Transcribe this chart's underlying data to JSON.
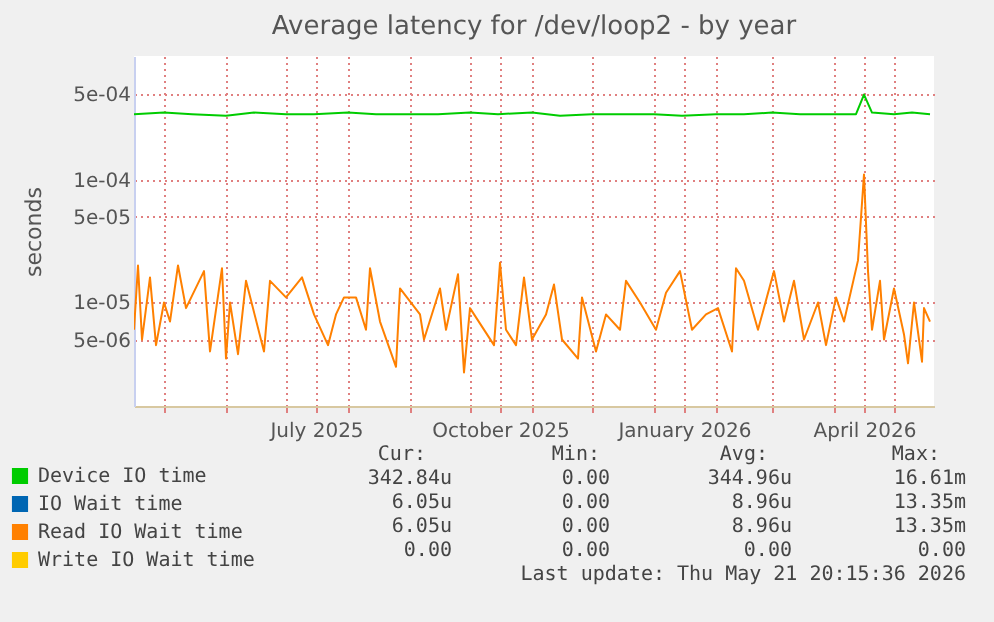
{
  "chart_data": {
    "type": "line",
    "title": "Average latency for /dev/loop2 - by year",
    "ylabel": "seconds",
    "log": "y",
    "grid": true,
    "legend": "bottom",
    "xlim": [
      "2025-04-16",
      "2026-05-21"
    ],
    "ylim": [
      1.44e-06,
      0.00101
    ],
    "xticks": [
      {
        "value": "2025-05-01",
        "label": null
      },
      {
        "value": "2025-06-01",
        "label": null
      },
      {
        "value": "2025-07-01",
        "label": null
      },
      {
        "value": "2025-07-16",
        "label": "July 2025"
      },
      {
        "value": "2025-08-01",
        "label": null
      },
      {
        "value": "2025-09-01",
        "label": null
      },
      {
        "value": "2025-10-01",
        "label": null
      },
      {
        "value": "2025-10-16",
        "label": "October 2025"
      },
      {
        "value": "2025-11-01",
        "label": null
      },
      {
        "value": "2025-12-01",
        "label": null
      },
      {
        "value": "2026-01-01",
        "label": null
      },
      {
        "value": "2026-01-16",
        "label": "January 2026"
      },
      {
        "value": "2026-02-01",
        "label": null
      },
      {
        "value": "2026-03-01",
        "label": null
      },
      {
        "value": "2026-04-01",
        "label": null
      },
      {
        "value": "2026-04-16",
        "label": "April 2026"
      },
      {
        "value": "2026-05-01",
        "label": null
      }
    ],
    "yticks": [
      {
        "value": 5e-06,
        "label": "5e-06"
      },
      {
        "value": 1e-05,
        "label": "1e-05"
      },
      {
        "value": 5e-05,
        "label": "5e-05"
      },
      {
        "value": 0.0001,
        "label": "1e-04"
      },
      {
        "value": 0.0005,
        "label": "5e-04"
      }
    ],
    "series": [
      {
        "name": "Device IO time",
        "color": "#00cc00",
        "x": [
          "2025-04-16",
          "2025-05-01",
          "2025-05-15",
          "2025-06-01",
          "2025-06-15",
          "2025-07-01",
          "2025-07-15",
          "2025-08-01",
          "2025-08-15",
          "2025-09-01",
          "2025-09-15",
          "2025-10-01",
          "2025-10-15",
          "2025-11-01",
          "2025-11-15",
          "2025-12-01",
          "2025-12-15",
          "2026-01-01",
          "2026-01-15",
          "2026-02-01",
          "2026-02-15",
          "2026-03-01",
          "2026-03-15",
          "2026-04-01",
          "2026-04-12",
          "2026-04-16",
          "2026-04-20",
          "2026-05-01",
          "2026-05-10",
          "2026-05-19"
        ],
        "values": [
          0.00034,
          0.00035,
          0.00034,
          0.00033,
          0.00035,
          0.00034,
          0.00034,
          0.00035,
          0.00034,
          0.00034,
          0.00034,
          0.00035,
          0.00034,
          0.00035,
          0.00033,
          0.00034,
          0.00034,
          0.00034,
          0.00033,
          0.00034,
          0.00034,
          0.00035,
          0.00034,
          0.00034,
          0.00034,
          0.00049,
          0.00035,
          0.00034,
          0.00035,
          0.00034
        ]
      },
      {
        "name": "IO Wait time",
        "color": "#0066b3"
      },
      {
        "name": "Read IO Wait time",
        "color": "#ff8000",
        "x": [
          "2025-04-16",
          "2025-04-18",
          "2025-04-20",
          "2025-04-24",
          "2025-04-27",
          "2025-05-01",
          "2025-05-04",
          "2025-05-08",
          "2025-05-12",
          "2025-05-21",
          "2025-05-24",
          "2025-05-30",
          "2025-06-01",
          "2025-06-03",
          "2025-06-07",
          "2025-06-11",
          "2025-06-20",
          "2025-06-23",
          "2025-07-01",
          "2025-07-09",
          "2025-07-15",
          "2025-07-22",
          "2025-07-26",
          "2025-07-30",
          "2025-08-05",
          "2025-08-10",
          "2025-08-12",
          "2025-08-17",
          "2025-08-25",
          "2025-08-27",
          "2025-09-06",
          "2025-09-08",
          "2025-09-16",
          "2025-09-19",
          "2025-09-25",
          "2025-09-28",
          "2025-10-01",
          "2025-10-13",
          "2025-10-16",
          "2025-10-19",
          "2025-10-24",
          "2025-10-28",
          "2025-11-01",
          "2025-11-08",
          "2025-11-12",
          "2025-11-16",
          "2025-11-24",
          "2025-11-26",
          "2025-12-03",
          "2025-12-08",
          "2025-12-15",
          "2025-12-18",
          "2025-12-25",
          "2026-01-02",
          "2026-01-07",
          "2026-01-14",
          "2026-01-20",
          "2026-01-27",
          "2026-02-02",
          "2026-02-09",
          "2026-02-11",
          "2026-02-15",
          "2026-02-22",
          "2026-03-02",
          "2026-03-07",
          "2026-03-12",
          "2026-03-17",
          "2026-03-24",
          "2026-03-28",
          "2026-04-02",
          "2026-04-06",
          "2026-04-13",
          "2026-04-16",
          "2026-04-18",
          "2026-04-20",
          "2026-04-24",
          "2026-04-26",
          "2026-05-01",
          "2026-05-06",
          "2026-05-08",
          "2026-05-11",
          "2026-05-15",
          "2026-05-16",
          "2026-05-19"
        ],
        "values": [
          6e-06,
          2e-05,
          5e-06,
          1.6e-05,
          4.5e-06,
          1e-05,
          7e-06,
          2e-05,
          9e-06,
          1.8e-05,
          4e-06,
          1.9e-05,
          3.5e-06,
          1e-05,
          3.8e-06,
          1.5e-05,
          4e-06,
          1.5e-05,
          1.1e-05,
          1.6e-05,
          8e-06,
          4.5e-06,
          8e-06,
          1.1e-05,
          1.1e-05,
          6e-06,
          1.9e-05,
          7e-06,
          3e-06,
          1.3e-05,
          8e-06,
          5e-06,
          1.3e-05,
          6e-06,
          1.7e-05,
          2.7e-06,
          9e-06,
          4.5e-06,
          2.1e-05,
          6e-06,
          4.5e-06,
          1.6e-05,
          5e-06,
          8e-06,
          1.4e-05,
          5e-06,
          3.5e-06,
          1.1e-05,
          4e-06,
          8e-06,
          6e-06,
          1.5e-05,
          1e-05,
          6e-06,
          1.2e-05,
          1.8e-05,
          6e-06,
          8e-06,
          9e-06,
          4e-06,
          1.9e-05,
          1.5e-05,
          6e-06,
          1.8e-05,
          7e-06,
          1.5e-05,
          5e-06,
          1e-05,
          4.5e-06,
          1.1e-05,
          7e-06,
          2.2e-05,
          0.00011,
          1.8e-05,
          6e-06,
          1.5e-05,
          5e-06,
          1.3e-05,
          5.5e-06,
          3.2e-06,
          1e-05,
          3.3e-06,
          9e-06,
          7e-06
        ]
      },
      {
        "name": "Write IO Wait time",
        "color": "#ffcc00"
      }
    ],
    "annotations": [
      "Cur:",
      "Min:",
      "Avg:",
      "Max:",
      "342.84u",
      "0.00",
      "344.96u",
      "16.61m",
      "6.05u",
      "0.00",
      "8.96u",
      "13.35m",
      "6.05u",
      "0.00",
      "8.96u",
      "13.35m",
      "0.00",
      "0.00",
      "0.00",
      "0.00",
      "Last update: Thu May 21 20:15:36 2026"
    ]
  }
}
